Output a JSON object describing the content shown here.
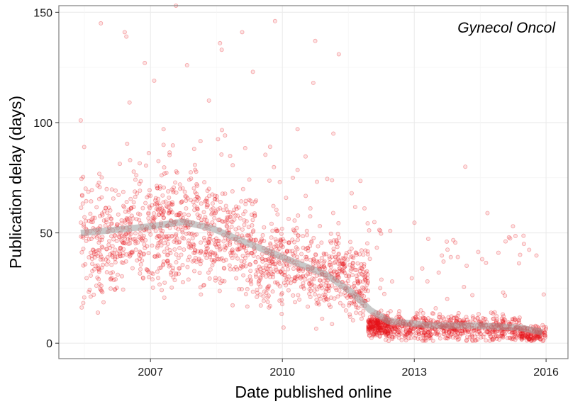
{
  "chart_data": {
    "type": "scatter",
    "title": "",
    "annotation": "Gynecol Oncol",
    "xlabel": "Date published online",
    "ylabel": "Publication delay (days)",
    "x_domain": [
      "2004-12-01",
      "2016-07-01"
    ],
    "ylim": [
      -7,
      153
    ],
    "x_ticks": [
      {
        "date": "2007-01-01",
        "label": "2007"
      },
      {
        "date": "2010-01-01",
        "label": "2010"
      },
      {
        "date": "2013-01-01",
        "label": "2013"
      },
      {
        "date": "2016-01-01",
        "label": "2016"
      }
    ],
    "y_ticks": [
      {
        "value": 0,
        "label": "0"
      },
      {
        "value": 50,
        "label": "50"
      },
      {
        "value": 100,
        "label": "100"
      },
      {
        "value": 150,
        "label": "150"
      }
    ],
    "grid": true,
    "colors": {
      "points": "#e8141a",
      "smooth": "#9c9c9c",
      "grid": "#ebebeb",
      "panel_border": "#7f7f7f"
    },
    "smooth_trend": [
      {
        "x": "2005-06-01",
        "y": 50
      },
      {
        "x": "2006-01-01",
        "y": 51
      },
      {
        "x": "2007-01-01",
        "y": 53
      },
      {
        "x": "2007-10-01",
        "y": 55
      },
      {
        "x": "2008-06-01",
        "y": 52
      },
      {
        "x": "2009-01-01",
        "y": 47
      },
      {
        "x": "2010-01-01",
        "y": 39
      },
      {
        "x": "2011-01-01",
        "y": 31
      },
      {
        "x": "2011-08-01",
        "y": 23
      },
      {
        "x": "2012-01-01",
        "y": 15
      },
      {
        "x": "2012-06-01",
        "y": 10
      },
      {
        "x": "2013-06-01",
        "y": 8
      },
      {
        "x": "2014-06-01",
        "y": 8
      },
      {
        "x": "2015-06-01",
        "y": 7
      },
      {
        "x": "2015-12-01",
        "y": 5
      }
    ],
    "point_groups": [
      {
        "period": [
          "2005-06-01",
          "2006-06-01"
        ],
        "center": 45,
        "spread": 12,
        "count": 220
      },
      {
        "period": [
          "2006-06-01",
          "2007-06-01"
        ],
        "center": 50,
        "spread": 13,
        "count": 240
      },
      {
        "period": [
          "2007-06-01",
          "2008-06-01"
        ],
        "center": 52,
        "spread": 13,
        "count": 240
      },
      {
        "period": [
          "2008-06-01",
          "2009-06-01"
        ],
        "center": 47,
        "spread": 12,
        "count": 220
      },
      {
        "period": [
          "2009-06-01",
          "2010-06-01"
        ],
        "center": 37,
        "spread": 10,
        "count": 220
      },
      {
        "period": [
          "2010-06-01",
          "2011-06-01"
        ],
        "center": 32,
        "spread": 9,
        "count": 220
      },
      {
        "period": [
          "2011-06-01",
          "2011-12-15"
        ],
        "center": 28,
        "spread": 8,
        "count": 140
      },
      {
        "period": [
          "2011-12-15",
          "2012-06-01"
        ],
        "center": 8,
        "spread": 2.5,
        "count": 260
      },
      {
        "period": [
          "2012-06-01",
          "2015-06-01"
        ],
        "center": 7,
        "spread": 3,
        "count": 650
      },
      {
        "period": [
          "2015-06-01",
          "2015-12-31"
        ],
        "center": 4,
        "spread": 2,
        "count": 150
      }
    ],
    "notable_points": [
      {
        "x": "2005-06-01",
        "y": 101
      },
      {
        "x": "2005-11-15",
        "y": 145
      },
      {
        "x": "2006-06-01",
        "y": 141
      },
      {
        "x": "2006-06-15",
        "y": 139
      },
      {
        "x": "2006-11-15",
        "y": 127
      },
      {
        "x": "2007-02-01",
        "y": 119
      },
      {
        "x": "2007-08-01",
        "y": 153
      },
      {
        "x": "2007-11-01",
        "y": 126
      },
      {
        "x": "2008-05-01",
        "y": 110
      },
      {
        "x": "2008-08-01",
        "y": 136
      },
      {
        "x": "2008-08-15",
        "y": 133
      },
      {
        "x": "2009-02-01",
        "y": 141
      },
      {
        "x": "2009-05-01",
        "y": 123
      },
      {
        "x": "2009-11-01",
        "y": 146
      },
      {
        "x": "2010-10-01",
        "y": 137
      },
      {
        "x": "2010-09-15",
        "y": 118
      },
      {
        "x": "2011-04-15",
        "y": 131
      },
      {
        "x": "2011-03-01",
        "y": 95
      },
      {
        "x": "2014-03-01",
        "y": 80
      },
      {
        "x": "2014-09-01",
        "y": 59
      },
      {
        "x": "2015-04-01",
        "y": 53
      },
      {
        "x": "2015-07-01",
        "y": 45
      },
      {
        "x": "2014-12-01",
        "y": 41
      },
      {
        "x": "2013-09-01",
        "y": 37
      },
      {
        "x": "2012-07-01",
        "y": 28
      }
    ]
  }
}
